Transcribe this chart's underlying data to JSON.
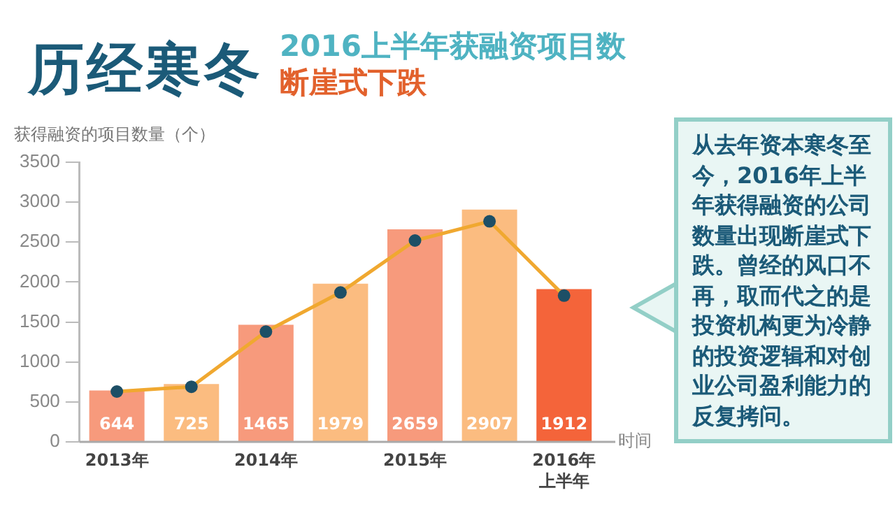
{
  "chart_data": {
    "type": "bar",
    "title": "历经寒冬",
    "subtitle": "2016上半年获融资项目数",
    "ylabel": "获得融资的项目数量（个）",
    "xlabel": "时间",
    "categories": [
      "2013年",
      null,
      "2014年",
      null,
      "2015年",
      null,
      "2016年上半年"
    ],
    "series": [
      {
        "colors": [
          "#f79a7c",
          "#fbbc80",
          "#f79a7c",
          "#fbbc80",
          "#f79a7c",
          "#fbbc80",
          "#f4643a"
        ],
        "values": [
          644,
          725,
          1465,
          1979,
          2659,
          2907,
          1912
        ],
        "value_labels": [
          "644",
          "725",
          "1465",
          "1979",
          "2659",
          "2907",
          "1912"
        ]
      },
      {
        "type": "line",
        "color": "#f0a830",
        "marker": "none",
        "values": [
          630,
          690,
          1380,
          1870,
          2520,
          2760,
          1830
        ]
      },
      {
        "type": "scatter",
        "color": "#1d4f66",
        "marker": "circle",
        "values": [
          630,
          690,
          1380,
          1870,
          2520,
          2760,
          1830
        ]
      }
    ],
    "ylim": [
      0,
      3500
    ],
    "yticks": [
      0,
      500,
      1000,
      1500,
      2000,
      2500,
      3000,
      3500
    ],
    "grid": false,
    "legend": false,
    "annotations": [
      "断崖式下跌",
      "从去年资本寒冬至今，2016年上半年获得融资的公司数量出现断崖式下跌。曾经的风口不再，取而代之的是投资机构更为冷静的投资逻辑和对创业公司盈利能力的反复拷问。"
    ]
  }
}
